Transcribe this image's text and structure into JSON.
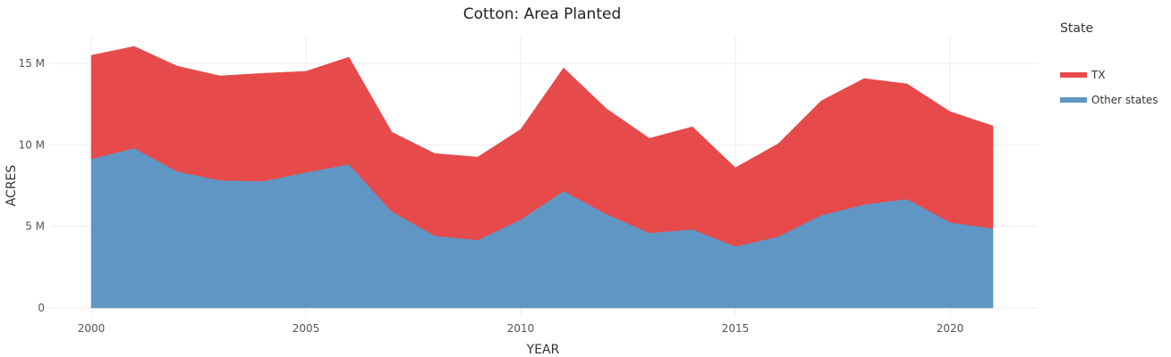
{
  "chart_data": {
    "type": "area",
    "stacked": true,
    "title": "Cotton: Area Planted",
    "xlabel": "YEAR",
    "ylabel": "ACRES",
    "x": [
      2000,
      2001,
      2002,
      2003,
      2004,
      2005,
      2006,
      2007,
      2008,
      2009,
      2010,
      2011,
      2012,
      2013,
      2014,
      2015,
      2016,
      2017,
      2018,
      2019,
      2020,
      2021
    ],
    "series": [
      {
        "name": "Other states",
        "color": "#6096c4",
        "values": [
          9.14,
          9.8,
          8.37,
          7.83,
          7.77,
          8.32,
          8.81,
          5.91,
          4.43,
          4.16,
          5.42,
          7.17,
          5.75,
          4.6,
          4.82,
          3.78,
          4.38,
          5.69,
          6.35,
          6.68,
          5.25,
          4.87
        ]
      },
      {
        "name": "TX",
        "color": "#e74a4a",
        "values": [
          6.35,
          6.24,
          6.46,
          6.4,
          6.62,
          6.19,
          6.57,
          4.87,
          5.04,
          5.09,
          5.53,
          7.55,
          6.46,
          5.8,
          6.29,
          4.82,
          5.69,
          7.01,
          7.72,
          7.06,
          6.79,
          6.29
        ]
      }
    ],
    "xticks": [
      "2000",
      "2005",
      "2010",
      "2015",
      "2020"
    ],
    "yticks": [
      "0",
      "5 M",
      "10 M",
      "15 M"
    ],
    "ylim": [
      0,
      16.6
    ],
    "xlim": [
      1999.6,
      2022.2
    ],
    "units": "million acres",
    "grid": true,
    "legend_position": "right"
  },
  "legend": {
    "title": "State",
    "items": [
      {
        "label": "TX",
        "color": "#e74a4a"
      },
      {
        "label": "Other states",
        "color": "#6096c4"
      }
    ]
  }
}
